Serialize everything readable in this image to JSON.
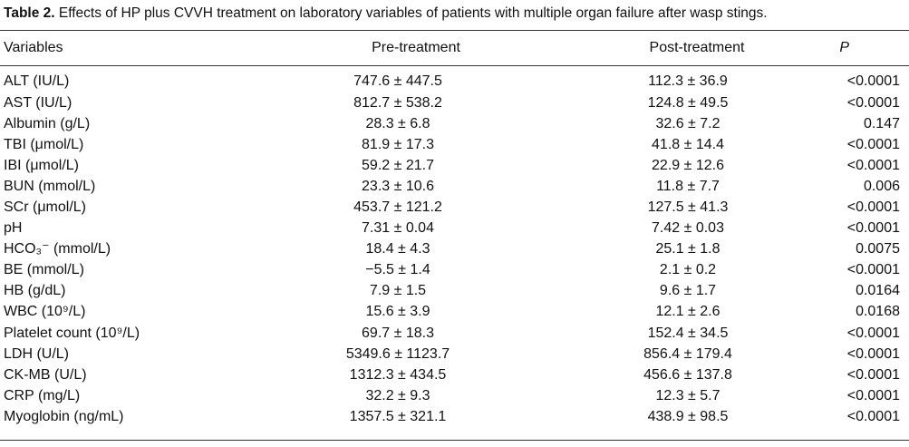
{
  "caption": {
    "label": "Table 2.",
    "text": "Effects of HP plus CVVH treatment on laboratory variables of patients with multiple organ failure after wasp stings."
  },
  "headers": {
    "variables": "Variables",
    "pre": "Pre-treatment",
    "post": "Post-treatment",
    "p": "P"
  },
  "rows": [
    {
      "variable": "ALT (IU/L)",
      "pre": "747.6 ± 447.5",
      "post": "112.3 ± 36.9",
      "p": "<0.0001"
    },
    {
      "variable": "AST (IU/L)",
      "pre": "812.7 ± 538.2",
      "post": "124.8 ± 49.5",
      "p": "<0.0001"
    },
    {
      "variable": "Albumin (g/L)",
      "pre": "28.3 ± 6.8",
      "post": "32.6 ± 7.2",
      "p": "0.147"
    },
    {
      "variable": "TBI (μmol/L)",
      "pre": "81.9 ± 17.3",
      "post": "41.8 ± 14.4",
      "p": "<0.0001"
    },
    {
      "variable": "IBI (μmol/L)",
      "pre": "59.2 ± 21.7",
      "post": "22.9 ± 12.6",
      "p": "<0.0001"
    },
    {
      "variable": "BUN (mmol/L)",
      "pre": "23.3 ± 10.6",
      "post": "11.8 ± 7.7",
      "p": "0.006"
    },
    {
      "variable": "SCr (μmol/L)",
      "pre": "453.7 ± 121.2",
      "post": "127.5 ± 41.3",
      "p": "<0.0001"
    },
    {
      "variable": "pH",
      "pre": "7.31 ± 0.04",
      "post": "7.42 ± 0.03",
      "p": "<0.0001"
    },
    {
      "variable": "HCO₃⁻ (mmol/L)",
      "pre": "18.4 ± 4.3",
      "post": "25.1 ± 1.8",
      "p": "0.0075"
    },
    {
      "variable": "BE (mmol/L)",
      "pre": "−5.5 ± 1.4",
      "post": "2.1 ± 0.2",
      "p": "<0.0001"
    },
    {
      "variable": "HB (g/dL)",
      "pre": "7.9 ± 1.5",
      "post": "9.6 ± 1.7",
      "p": "0.0164"
    },
    {
      "variable": "WBC (10⁹/L)",
      "pre": "15.6 ± 3.9",
      "post": "12.1 ± 2.6",
      "p": "0.0168"
    },
    {
      "variable": "Platelet count (10⁹/L)",
      "pre": "69.7 ± 18.3",
      "post": "152.4 ± 34.5",
      "p": "<0.0001"
    },
    {
      "variable": "LDH (U/L)",
      "pre": "5349.6 ± 1123.7",
      "post": "856.4 ± 179.4",
      "p": "<0.0001"
    },
    {
      "variable": "CK-MB (U/L)",
      "pre": "1312.3 ± 434.5",
      "post": "456.6 ± 137.8",
      "p": "<0.0001"
    },
    {
      "variable": "CRP (mg/L)",
      "pre": "32.2 ± 9.3",
      "post": "12.3 ± 5.7",
      "p": "<0.0001"
    },
    {
      "variable": "Myoglobin (ng/mL)",
      "pre": "1357.5 ± 321.1",
      "post": "438.9 ± 98.5",
      "p": "<0.0001"
    }
  ]
}
